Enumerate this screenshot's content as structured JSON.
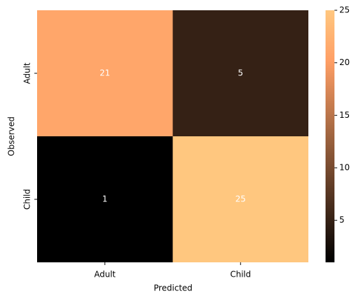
{
  "chart_data": {
    "type": "heatmap",
    "x_categories": [
      "Adult",
      "Child"
    ],
    "y_categories": [
      "Adult",
      "Child"
    ],
    "z": [
      [
        21,
        5
      ],
      [
        1,
        25
      ]
    ],
    "xlabel": "Predicted",
    "ylabel": "Observed",
    "colormap": "copper",
    "annotation_color": "#ffffff",
    "colorbar_lim": [
      1,
      25
    ],
    "colorbar_ticks": [
      5,
      10,
      15,
      20,
      25
    ]
  }
}
